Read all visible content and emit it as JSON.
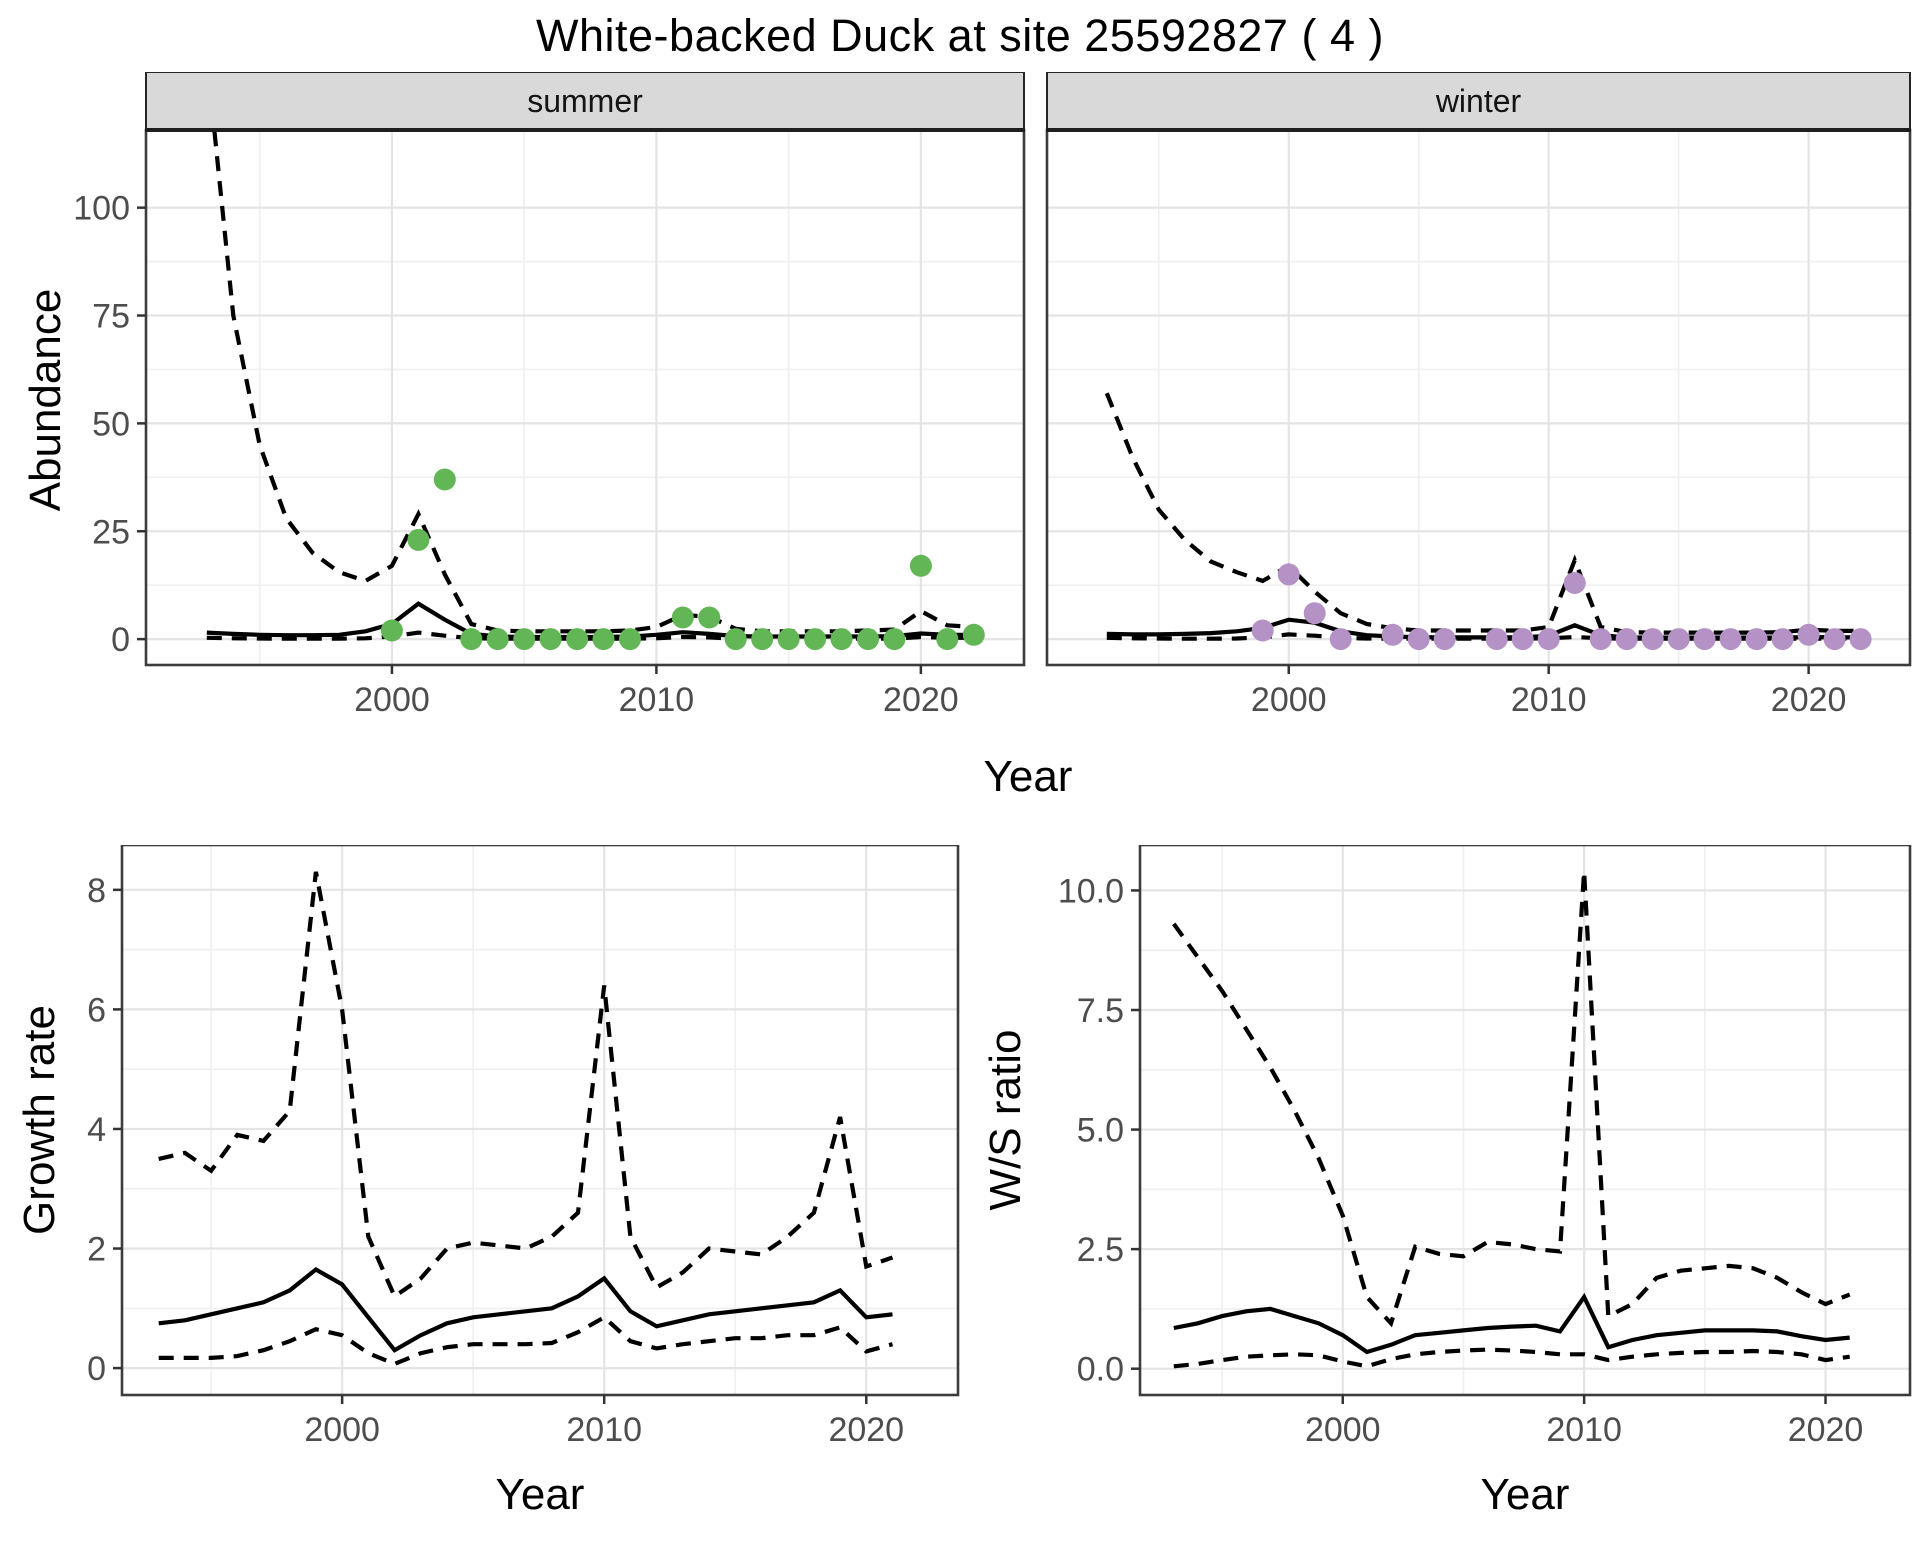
{
  "labels": {
    "title": "White-backed Duck at site 25592827 ( 4 )",
    "x_axis": "Year",
    "y_axis_abundance": "Abundance",
    "y_axis_growth": "Growth rate",
    "y_axis_ws": "W/S ratio"
  },
  "colors": {
    "summer_point": "#63b656",
    "winter_point": "#b592c6",
    "line": "#000000",
    "grid_major": "#e4e4e4",
    "grid_minor": "#f0f0f0",
    "panel_border": "#3c3c3c",
    "strip_bg": "#d9d9d9",
    "strip_border": "#262626",
    "tick_mark": "#333333",
    "tick_label": "#4d4d4d"
  },
  "chart_data": [
    {
      "id": "abundance-summer",
      "type": "line",
      "facet": "summer",
      "ylabel": "Abundance",
      "xlabel": "Year",
      "xlim": [
        1990.7,
        2023.9
      ],
      "ylim": [
        -6,
        118
      ],
      "xticks": [
        2000,
        2010,
        2020
      ],
      "xtick_labels": [
        "2000",
        "2010",
        "2020"
      ],
      "yticks": [
        0,
        25,
        50,
        75,
        100
      ],
      "ytick_labels": [
        "0",
        "25",
        "50",
        "75",
        "100"
      ],
      "xminor": [
        1995,
        2005,
        2015
      ],
      "yminor": [
        12.5,
        37.5,
        62.5,
        87.5
      ],
      "series": [
        {
          "name": "upper_ci",
          "style": "dashed",
          "x": [
            1993,
            1994,
            1995,
            1996,
            1997,
            1998,
            1999,
            2000,
            2001,
            2002,
            2003,
            2004,
            2005,
            2006,
            2007,
            2008,
            2009,
            2010,
            2011,
            2012,
            2013,
            2014,
            2015,
            2016,
            2017,
            2018,
            2019,
            2020,
            2021,
            2022
          ],
          "y": [
            135,
            75,
            45,
            28,
            20,
            15.5,
            13.5,
            17,
            29,
            15,
            3.5,
            2,
            1.8,
            1.8,
            1.8,
            1.8,
            2,
            2.8,
            5.6,
            5.2,
            2.4,
            1.8,
            1.8,
            1.8,
            1.8,
            2,
            2.2,
            6.5,
            3.2,
            2.8
          ]
        },
        {
          "name": "median_fit",
          "style": "solid",
          "x": [
            1993,
            1994,
            1995,
            1996,
            1997,
            1998,
            1999,
            2000,
            2001,
            2002,
            2003,
            2004,
            2005,
            2006,
            2007,
            2008,
            2009,
            2010,
            2011,
            2012,
            2013,
            2014,
            2015,
            2016,
            2017,
            2018,
            2019,
            2020,
            2021,
            2022
          ],
          "y": [
            1.5,
            1.2,
            1.0,
            0.9,
            0.9,
            1.0,
            1.8,
            3.5,
            8.2,
            4.5,
            1.2,
            0.6,
            0.5,
            0.5,
            0.5,
            0.5,
            0.6,
            1.0,
            1.6,
            1.2,
            0.7,
            0.6,
            0.6,
            0.6,
            0.6,
            0.6,
            0.7,
            1.3,
            1.0,
            1.0
          ]
        },
        {
          "name": "lower_ci",
          "style": "dashed",
          "x": [
            1993,
            1994,
            1995,
            1996,
            1997,
            1998,
            1999,
            2000,
            2001,
            2002,
            2003,
            2004,
            2005,
            2006,
            2007,
            2008,
            2009,
            2010,
            2011,
            2012,
            2013,
            2014,
            2015,
            2016,
            2017,
            2018,
            2019,
            2020,
            2021,
            2022
          ],
          "y": [
            0.3,
            0.2,
            0.15,
            0.1,
            0.1,
            0.1,
            0.2,
            0.6,
            1.5,
            0.8,
            0.2,
            0.1,
            0.1,
            0.1,
            0.1,
            0.1,
            0.1,
            0.2,
            0.5,
            0.4,
            0.1,
            0.1,
            0.1,
            0.1,
            0.1,
            0.1,
            0.1,
            0.5,
            0.3,
            0.3
          ]
        }
      ],
      "points": {
        "name": "observed_counts",
        "color": "summer_point",
        "x": [
          2000,
          2001,
          2002,
          2003,
          2004,
          2005,
          2006,
          2007,
          2008,
          2009,
          2011,
          2012,
          2013,
          2014,
          2015,
          2016,
          2017,
          2018,
          2019,
          2020,
          2021,
          2022
        ],
        "y": [
          2,
          23,
          37,
          0,
          0,
          0,
          0,
          0,
          0,
          0,
          5,
          5,
          0,
          0,
          0,
          0,
          0,
          0,
          0,
          17,
          0,
          1
        ]
      }
    },
    {
      "id": "abundance-winter",
      "type": "line",
      "facet": "winter",
      "ylabel": "Abundance",
      "xlabel": "Year",
      "xlim": [
        1990.7,
        2023.9
      ],
      "ylim": [
        -6,
        118
      ],
      "xticks": [
        2000,
        2010,
        2020
      ],
      "xtick_labels": [
        "2000",
        "2010",
        "2020"
      ],
      "yticks": [
        0,
        25,
        50,
        75,
        100
      ],
      "ytick_labels": [
        "0",
        "25",
        "50",
        "75",
        "100"
      ],
      "xminor": [
        1995,
        2005,
        2015
      ],
      "yminor": [
        12.5,
        37.5,
        62.5,
        87.5
      ],
      "series": [
        {
          "name": "upper_ci",
          "style": "dashed",
          "x": [
            1993,
            1994,
            1995,
            1996,
            1997,
            1998,
            1999,
            2000,
            2001,
            2002,
            2003,
            2004,
            2005,
            2006,
            2007,
            2008,
            2009,
            2010,
            2011,
            2012,
            2013,
            2014,
            2015,
            2016,
            2017,
            2018,
            2019,
            2020,
            2021,
            2022
          ],
          "y": [
            57,
            42,
            30,
            23,
            18,
            15.5,
            13.5,
            17,
            11,
            6,
            3.5,
            2.5,
            2,
            2,
            2,
            2,
            2,
            2.8,
            18.3,
            2.8,
            1.6,
            1.5,
            1.5,
            1.5,
            1.5,
            1.5,
            1.6,
            2.2,
            1.9,
            1.9
          ]
        },
        {
          "name": "median_fit",
          "style": "solid",
          "x": [
            1993,
            1994,
            1995,
            1996,
            1997,
            1998,
            1999,
            2000,
            2001,
            2002,
            2003,
            2004,
            2005,
            2006,
            2007,
            2008,
            2009,
            2010,
            2011,
            2012,
            2013,
            2014,
            2015,
            2016,
            2017,
            2018,
            2019,
            2020,
            2021,
            2022
          ],
          "y": [
            1.2,
            1.1,
            1.1,
            1.2,
            1.4,
            1.8,
            2.6,
            4.5,
            3.8,
            1.8,
            0.9,
            0.6,
            0.45,
            0.4,
            0.4,
            0.4,
            0.4,
            0.8,
            3.2,
            0.9,
            0.4,
            0.35,
            0.35,
            0.35,
            0.35,
            0.35,
            0.35,
            0.5,
            0.4,
            0.4
          ]
        },
        {
          "name": "lower_ci",
          "style": "dashed",
          "x": [
            1993,
            1994,
            1995,
            1996,
            1997,
            1998,
            1999,
            2000,
            2001,
            2002,
            2003,
            2004,
            2005,
            2006,
            2007,
            2008,
            2009,
            2010,
            2011,
            2012,
            2013,
            2014,
            2015,
            2016,
            2017,
            2018,
            2019,
            2020,
            2021,
            2022
          ],
          "y": [
            0.3,
            0.2,
            0.15,
            0.1,
            0.1,
            0.15,
            0.4,
            1.1,
            0.8,
            0.3,
            0.15,
            0.1,
            0.1,
            0.1,
            0.1,
            0.1,
            0.1,
            0.2,
            0.5,
            0.2,
            0.1,
            0.1,
            0.1,
            0.1,
            0.1,
            0.1,
            0.1,
            0.15,
            0.1,
            0.1
          ]
        }
      ],
      "points": {
        "name": "observed_counts",
        "color": "winter_point",
        "x": [
          1999,
          2000,
          2001,
          2002,
          2004,
          2005,
          2006,
          2008,
          2009,
          2010,
          2011,
          2012,
          2013,
          2014,
          2015,
          2016,
          2017,
          2018,
          2019,
          2020,
          2021,
          2022
        ],
        "y": [
          2,
          15,
          6,
          0,
          1,
          0,
          0,
          0,
          0,
          0,
          13,
          0,
          0,
          0,
          0,
          0,
          0,
          0,
          0,
          1,
          0,
          0
        ]
      }
    },
    {
      "id": "growth-rate",
      "type": "line",
      "facet": null,
      "ylabel": "Growth rate",
      "xlabel": "Year",
      "xlim": [
        1991.6,
        2023.5
      ],
      "ylim": [
        -0.45,
        8.75
      ],
      "xticks": [
        2000,
        2010,
        2020
      ],
      "xtick_labels": [
        "2000",
        "2010",
        "2020"
      ],
      "yticks": [
        0,
        2,
        4,
        6,
        8
      ],
      "ytick_labels": [
        "0",
        "2",
        "4",
        "6",
        "8"
      ],
      "xminor": [
        1995,
        2005,
        2015
      ],
      "yminor": [
        1,
        3,
        5,
        7
      ],
      "series": [
        {
          "name": "upper_ci",
          "style": "dashed",
          "x": [
            1993,
            1994,
            1995,
            1996,
            1997,
            1998,
            1999,
            2000,
            2001,
            2002,
            2003,
            2004,
            2005,
            2006,
            2007,
            2008,
            2009,
            2010,
            2011,
            2012,
            2013,
            2014,
            2015,
            2016,
            2017,
            2018,
            2019,
            2020,
            2021
          ],
          "y": [
            3.5,
            3.6,
            3.3,
            3.9,
            3.8,
            4.3,
            8.3,
            6.0,
            2.2,
            1.2,
            1.5,
            2.0,
            2.1,
            2.05,
            2.0,
            2.2,
            2.6,
            6.4,
            2.2,
            1.35,
            1.6,
            2.0,
            1.95,
            1.9,
            2.2,
            2.6,
            4.2,
            1.7,
            1.85
          ]
        },
        {
          "name": "median_fit",
          "style": "solid",
          "x": [
            1993,
            1994,
            1995,
            1996,
            1997,
            1998,
            1999,
            2000,
            2001,
            2002,
            2003,
            2004,
            2005,
            2006,
            2007,
            2008,
            2009,
            2010,
            2011,
            2012,
            2013,
            2014,
            2015,
            2016,
            2017,
            2018,
            2019,
            2020,
            2021
          ],
          "y": [
            0.75,
            0.8,
            0.9,
            1.0,
            1.1,
            1.3,
            1.65,
            1.4,
            0.85,
            0.3,
            0.55,
            0.75,
            0.85,
            0.9,
            0.95,
            1.0,
            1.2,
            1.5,
            0.95,
            0.7,
            0.8,
            0.9,
            0.95,
            1.0,
            1.05,
            1.1,
            1.3,
            0.85,
            0.9
          ]
        },
        {
          "name": "lower_ci",
          "style": "dashed",
          "x": [
            1993,
            1994,
            1995,
            1996,
            1997,
            1998,
            1999,
            2000,
            2001,
            2002,
            2003,
            2004,
            2005,
            2006,
            2007,
            2008,
            2009,
            2010,
            2011,
            2012,
            2013,
            2014,
            2015,
            2016,
            2017,
            2018,
            2019,
            2020,
            2021
          ],
          "y": [
            0.17,
            0.17,
            0.17,
            0.2,
            0.3,
            0.45,
            0.65,
            0.55,
            0.25,
            0.07,
            0.25,
            0.35,
            0.4,
            0.4,
            0.4,
            0.42,
            0.6,
            0.85,
            0.45,
            0.33,
            0.4,
            0.45,
            0.5,
            0.5,
            0.55,
            0.55,
            0.68,
            0.28,
            0.4
          ]
        }
      ],
      "points": null
    },
    {
      "id": "ws-ratio",
      "type": "line",
      "facet": null,
      "ylabel": "W/S ratio",
      "xlabel": "Year",
      "xlim": [
        1991.6,
        2023.5
      ],
      "ylim": [
        -0.55,
        10.95
      ],
      "xticks": [
        2000,
        2010,
        2020
      ],
      "xtick_labels": [
        "2000",
        "2010",
        "2020"
      ],
      "yticks": [
        0,
        2.5,
        5,
        7.5,
        10
      ],
      "ytick_labels": [
        "0.0",
        "2.5",
        "5.0",
        "7.5",
        "10.0"
      ],
      "xminor": [
        1995,
        2005,
        2015
      ],
      "yminor": [
        1.25,
        3.75,
        6.25,
        8.75
      ],
      "series": [
        {
          "name": "upper_ci",
          "style": "dashed",
          "x": [
            1993,
            1994,
            1995,
            1996,
            1997,
            1998,
            1999,
            2000,
            2001,
            2002,
            2003,
            2004,
            2005,
            2006,
            2007,
            2008,
            2009,
            2010,
            2011,
            2012,
            2013,
            2014,
            2015,
            2016,
            2017,
            2018,
            2019,
            2020,
            2021
          ],
          "y": [
            9.3,
            8.6,
            7.9,
            7.1,
            6.3,
            5.4,
            4.4,
            3.2,
            1.5,
            0.95,
            2.55,
            2.4,
            2.35,
            2.65,
            2.6,
            2.5,
            2.45,
            10.4,
            1.1,
            1.35,
            1.9,
            2.05,
            2.1,
            2.15,
            2.1,
            1.9,
            1.6,
            1.35,
            1.55
          ]
        },
        {
          "name": "median_fit",
          "style": "solid",
          "x": [
            1993,
            1994,
            1995,
            1996,
            1997,
            1998,
            1999,
            2000,
            2001,
            2002,
            2003,
            2004,
            2005,
            2006,
            2007,
            2008,
            2009,
            2010,
            2011,
            2012,
            2013,
            2014,
            2015,
            2016,
            2017,
            2018,
            2019,
            2020,
            2021
          ],
          "y": [
            0.85,
            0.95,
            1.1,
            1.2,
            1.25,
            1.1,
            0.95,
            0.7,
            0.35,
            0.5,
            0.7,
            0.75,
            0.8,
            0.85,
            0.88,
            0.9,
            0.78,
            1.5,
            0.45,
            0.6,
            0.7,
            0.75,
            0.8,
            0.8,
            0.8,
            0.78,
            0.68,
            0.6,
            0.65
          ]
        },
        {
          "name": "lower_ci",
          "style": "dashed",
          "x": [
            1993,
            1994,
            1995,
            1996,
            1997,
            1998,
            1999,
            2000,
            2001,
            2002,
            2003,
            2004,
            2005,
            2006,
            2007,
            2008,
            2009,
            2010,
            2011,
            2012,
            2013,
            2014,
            2015,
            2016,
            2017,
            2018,
            2019,
            2020,
            2021
          ],
          "y": [
            0.05,
            0.1,
            0.18,
            0.25,
            0.28,
            0.3,
            0.28,
            0.15,
            0.05,
            0.2,
            0.3,
            0.35,
            0.38,
            0.4,
            0.38,
            0.35,
            0.3,
            0.3,
            0.18,
            0.25,
            0.3,
            0.33,
            0.35,
            0.35,
            0.37,
            0.35,
            0.3,
            0.18,
            0.25
          ]
        }
      ],
      "points": null
    }
  ]
}
